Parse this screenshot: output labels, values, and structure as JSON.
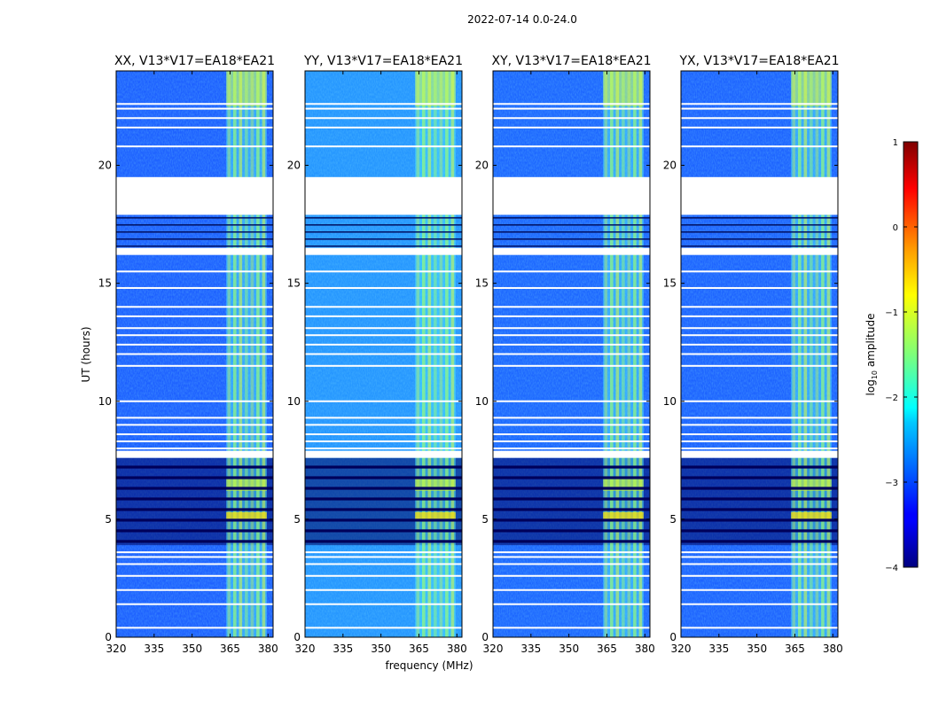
{
  "suptitle": "2022-07-14 0.0-24.0",
  "chart_data": {
    "type": "heatmap",
    "title": "2022-07-14 0.0-24.0",
    "xlabel": "frequency (MHz)",
    "ylabel": "UT (hours)",
    "xlim": [
      320,
      382
    ],
    "ylim": [
      0,
      24
    ],
    "x_ticks": [
      320,
      335,
      350,
      365,
      380
    ],
    "y_ticks": [
      0,
      5,
      10,
      15,
      20
    ],
    "panels": [
      {
        "title": "XX, V13*V17=EA18*EA21",
        "brightness": 0.0
      },
      {
        "title": "YY, V13*V17=EA18*EA21",
        "brightness": 0.9
      },
      {
        "title": "XY, V13*V17=EA18*EA21",
        "brightness": 0.1
      },
      {
        "title": "YX, V13*V17=EA18*EA21",
        "brightness": 0.05
      }
    ],
    "rfi_band_mhz": [
      363.5,
      379.5
    ],
    "data_gaps_hours": [
      [
        17.9,
        19.5
      ],
      [
        7.6,
        7.9
      ],
      [
        16.2,
        16.5
      ]
    ],
    "flagged_rows_hours": [
      0.4,
      1.4,
      2.0,
      2.6,
      3.1,
      3.4,
      3.6,
      8.0,
      8.3,
      8.6,
      9.0,
      9.3,
      10.0,
      11.5,
      12.0,
      12.4,
      12.8,
      13.1,
      13.6,
      14.0,
      14.8,
      15.5,
      20.8,
      21.6,
      22.0,
      22.4,
      22.6
    ],
    "colorbar": {
      "label": "log10 amplitude",
      "label_main": "log",
      "label_sub": "10",
      "label_rest": " amplitude",
      "range": [
        -4,
        1
      ],
      "ticks": [
        1,
        0,
        -1,
        -2,
        -3,
        -4
      ],
      "tick_labels": [
        "1",
        "0",
        "−1",
        "−2",
        "−3",
        "−4"
      ],
      "colormap": "jet"
    }
  }
}
